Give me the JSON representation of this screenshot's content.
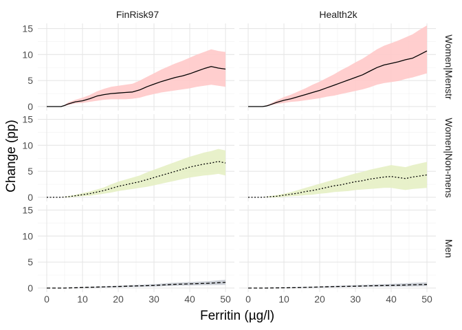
{
  "chart_data": {
    "type": "line",
    "xlabel": "Ferritin (µg/l)",
    "ylabel": "Change (pp)",
    "xlim": [
      -2.5,
      52.5
    ],
    "ylim": [
      -0.8,
      16
    ],
    "x_ticks": [
      0,
      10,
      20,
      30,
      40,
      50
    ],
    "y_ticks": [
      0,
      5,
      10,
      15
    ],
    "column_labels": [
      "FinRisk97",
      "Health2k"
    ],
    "row_labels": [
      "Women|Menstr",
      "Women|Non-mens",
      "Men"
    ],
    "grid": true,
    "panels": [
      {
        "column": "FinRisk97",
        "row": "Women|Menstr",
        "line_style": "solid",
        "band_color": "#ffc9c9",
        "x": [
          0,
          2,
          4,
          5,
          6,
          8,
          10,
          12,
          14,
          16,
          18,
          20,
          22,
          24,
          26,
          28,
          30,
          32,
          34,
          36,
          38,
          40,
          42,
          44,
          46,
          48,
          50
        ],
        "mean": [
          0,
          0,
          0,
          0.2,
          0.5,
          0.9,
          1.1,
          1.5,
          2.0,
          2.3,
          2.5,
          2.6,
          2.7,
          2.8,
          3.2,
          3.8,
          4.3,
          4.8,
          5.2,
          5.6,
          5.9,
          6.3,
          6.8,
          7.3,
          7.7,
          7.4,
          7.2
        ],
        "lower": [
          0,
          0,
          0,
          0.1,
          0.3,
          0.6,
          0.7,
          0.9,
          1.1,
          1.3,
          1.4,
          1.4,
          1.4,
          1.5,
          1.7,
          2.1,
          2.4,
          2.7,
          2.9,
          3.1,
          3.3,
          3.5,
          3.8,
          4.0,
          4.2,
          4.0,
          3.8
        ],
        "upper": [
          0,
          0,
          0,
          0.3,
          0.8,
          1.3,
          1.7,
          2.2,
          2.9,
          3.4,
          3.8,
          4.0,
          4.2,
          4.4,
          5.0,
          5.7,
          6.4,
          7.1,
          7.7,
          8.3,
          8.8,
          9.4,
          10.0,
          10.5,
          11.0,
          10.7,
          10.5
        ]
      },
      {
        "column": "Health2k",
        "row": "Women|Menstr",
        "line_style": "solid",
        "band_color": "#ffc9c9",
        "x": [
          0,
          2,
          4,
          5,
          6,
          8,
          10,
          12,
          14,
          16,
          18,
          20,
          22,
          24,
          26,
          28,
          30,
          32,
          34,
          36,
          38,
          40,
          42,
          44,
          46,
          48,
          50
        ],
        "mean": [
          0,
          0,
          0,
          0.1,
          0.3,
          0.8,
          1.2,
          1.5,
          1.9,
          2.3,
          2.7,
          3.1,
          3.6,
          4.1,
          4.6,
          5.1,
          5.6,
          6.1,
          6.8,
          7.5,
          8.0,
          8.3,
          8.6,
          9.0,
          9.3,
          10.0,
          10.7
        ],
        "lower": [
          0,
          0,
          0,
          0.1,
          0.2,
          0.5,
          0.7,
          0.9,
          1.0,
          1.2,
          1.4,
          1.6,
          1.9,
          2.1,
          2.4,
          2.7,
          3.0,
          3.3,
          3.7,
          4.2,
          4.5,
          4.7,
          4.9,
          5.3,
          5.6,
          6.0,
          6.4
        ],
        "upper": [
          0,
          0,
          0,
          0.2,
          0.5,
          1.2,
          1.8,
          2.3,
          2.9,
          3.5,
          4.2,
          4.8,
          5.5,
          6.2,
          7.0,
          7.7,
          8.5,
          9.2,
          10.1,
          11.0,
          11.7,
          12.2,
          12.7,
          13.3,
          13.9,
          14.8,
          15.6
        ]
      },
      {
        "column": "FinRisk97",
        "row": "Women|Non-mens",
        "line_style": "dotted",
        "band_color": "#e6efc4",
        "x": [
          0,
          2,
          4,
          6,
          8,
          10,
          12,
          14,
          16,
          18,
          20,
          22,
          24,
          26,
          28,
          30,
          32,
          34,
          36,
          38,
          40,
          42,
          44,
          46,
          48,
          50
        ],
        "mean": [
          0,
          0,
          0,
          0.1,
          0.3,
          0.5,
          0.7,
          1.0,
          1.3,
          1.7,
          2.1,
          2.4,
          2.7,
          3.0,
          3.4,
          3.8,
          4.2,
          4.6,
          5.0,
          5.4,
          5.8,
          6.1,
          6.4,
          6.6,
          6.9,
          6.6
        ],
        "lower": [
          0,
          0,
          0,
          0,
          0.1,
          0.2,
          0.3,
          0.5,
          0.7,
          0.9,
          1.2,
          1.4,
          1.6,
          1.8,
          2.0,
          2.3,
          2.6,
          2.9,
          3.2,
          3.5,
          3.8,
          4.0,
          4.2,
          4.3,
          4.5,
          4.2
        ],
        "upper": [
          0,
          0,
          0,
          0.2,
          0.5,
          0.8,
          1.1,
          1.5,
          1.9,
          2.5,
          3.0,
          3.4,
          3.8,
          4.2,
          4.8,
          5.3,
          5.8,
          6.3,
          6.8,
          7.3,
          7.8,
          8.2,
          8.6,
          8.9,
          9.3,
          9.0
        ]
      },
      {
        "column": "Health2k",
        "row": "Women|Non-mens",
        "line_style": "dotted",
        "band_color": "#e6efc4",
        "x": [
          0,
          2,
          4,
          6,
          8,
          10,
          12,
          14,
          16,
          18,
          20,
          22,
          24,
          26,
          28,
          30,
          32,
          34,
          36,
          38,
          40,
          42,
          44,
          46,
          48,
          50
        ],
        "mean": [
          0,
          0,
          0,
          0.1,
          0.2,
          0.4,
          0.6,
          0.8,
          1.1,
          1.3,
          1.6,
          1.9,
          2.2,
          2.4,
          2.7,
          3.0,
          3.2,
          3.5,
          3.7,
          3.9,
          4.0,
          3.8,
          3.6,
          3.9,
          4.1,
          4.3
        ],
        "lower": [
          0,
          0,
          0,
          0,
          0,
          0.1,
          0.2,
          0.3,
          0.4,
          0.5,
          0.7,
          0.8,
          1.0,
          1.1,
          1.2,
          1.4,
          1.5,
          1.6,
          1.7,
          1.8,
          1.8,
          1.6,
          1.4,
          1.6,
          1.7,
          1.8
        ],
        "upper": [
          0,
          0,
          0,
          0.2,
          0.4,
          0.7,
          1.0,
          1.4,
          1.8,
          2.2,
          2.6,
          3.0,
          3.4,
          3.8,
          4.2,
          4.6,
          4.9,
          5.3,
          5.6,
          5.9,
          6.2,
          6.0,
          5.8,
          6.2,
          6.5,
          6.8
        ]
      },
      {
        "column": "FinRisk97",
        "row": "Men",
        "line_style": "dashed",
        "band_color": "#c7cbd3",
        "x": [
          0,
          5,
          10,
          15,
          20,
          25,
          30,
          35,
          40,
          45,
          50
        ],
        "mean": [
          0,
          0,
          0.1,
          0.2,
          0.3,
          0.4,
          0.5,
          0.7,
          0.8,
          0.9,
          1.1
        ],
        "lower": [
          0,
          0,
          0.05,
          0.1,
          0.15,
          0.2,
          0.3,
          0.4,
          0.5,
          0.55,
          0.6
        ],
        "upper": [
          0,
          0,
          0.15,
          0.3,
          0.45,
          0.6,
          0.75,
          1.0,
          1.15,
          1.3,
          1.6
        ]
      },
      {
        "column": "Health2k",
        "row": "Men",
        "line_style": "dashed",
        "band_color": "#c7cbd3",
        "x": [
          0,
          5,
          10,
          15,
          20,
          25,
          30,
          35,
          40,
          45,
          50
        ],
        "mean": [
          0,
          0,
          0.05,
          0.1,
          0.2,
          0.3,
          0.35,
          0.45,
          0.5,
          0.6,
          0.7
        ],
        "lower": [
          0,
          0,
          0.0,
          0.05,
          0.1,
          0.15,
          0.2,
          0.25,
          0.3,
          0.3,
          0.35
        ],
        "upper": [
          0,
          0,
          0.1,
          0.2,
          0.3,
          0.45,
          0.55,
          0.7,
          0.8,
          0.95,
          1.1
        ]
      }
    ]
  }
}
